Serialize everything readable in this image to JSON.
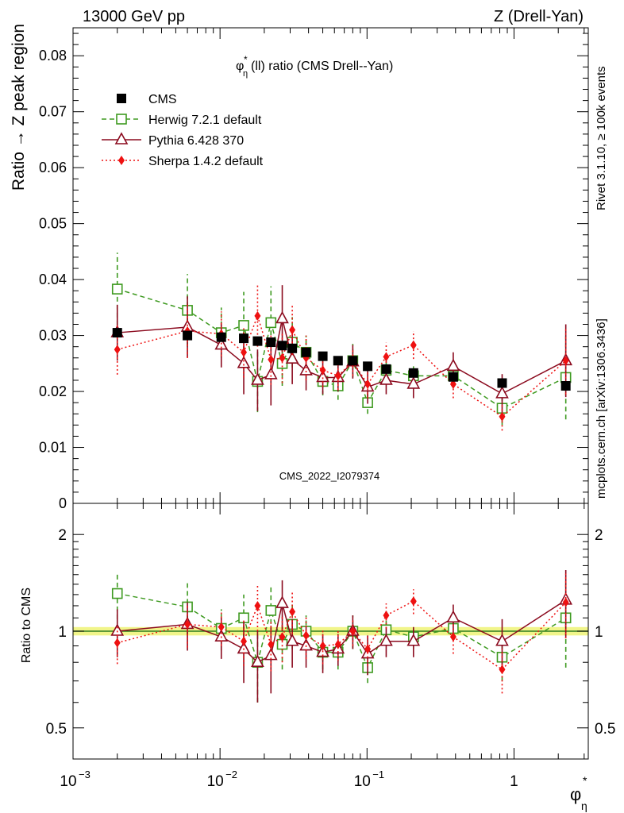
{
  "header": {
    "left": "13000 GeV pp",
    "right": "Z (Drell-Yan)"
  },
  "side_labels": {
    "rivet": "Rivet 3.1.10, ≥ 100k events",
    "source": "mcplots.cern.ch [arXiv:1306.3436]"
  },
  "watermark": "CMS_2022_I2079374",
  "chart_data": [
    {
      "type": "scatter",
      "panel": "main",
      "title": "φ*η(ll) ratio (CMS Drell--Yan)",
      "title_parts": {
        "sym": "φ",
        "sub": "η",
        "sup": "*",
        "rest": "(ll) ratio (CMS Drell--Yan)"
      },
      "ylabel": "Ratio → Z peak region",
      "xscale": "log",
      "xlim": [
        0.001,
        3.2
      ],
      "ylim": [
        0,
        0.085
      ],
      "yticks": [
        "0",
        "0.01",
        "0.02",
        "0.03",
        "0.04",
        "0.05",
        "0.06",
        "0.07",
        "0.08"
      ],
      "x": [
        0.002,
        0.006,
        0.0102,
        0.0145,
        0.018,
        0.0222,
        0.0265,
        0.031,
        0.0385,
        0.05,
        0.0635,
        0.08,
        0.101,
        0.135,
        0.207,
        0.386,
        0.83,
        2.25
      ],
      "series": [
        {
          "name": "CMS",
          "color": "#000000",
          "marker": "square-filled",
          "line": "none",
          "values": [
            0.0305,
            0.03,
            0.0297,
            0.0295,
            0.029,
            0.0288,
            0.0282,
            0.0277,
            0.027,
            0.0263,
            0.0255,
            0.0255,
            0.0245,
            0.024,
            0.0233,
            0.0226,
            0.0215,
            0.021
          ],
          "errors": [
            0.0,
            0.0,
            0.0,
            0.0,
            0.0,
            0.0,
            0.0,
            0.0,
            0.0,
            0.0,
            0.0,
            0.0,
            0.0,
            0.0,
            0.0,
            0.0,
            0.0,
            0.0
          ]
        },
        {
          "name": "Herwig 7.2.1 default",
          "color": "#3e9a20",
          "marker": "square-open",
          "line": "dashed",
          "values": [
            0.0383,
            0.0345,
            0.0305,
            0.0318,
            0.0218,
            0.0323,
            0.025,
            0.0288,
            0.027,
            0.0218,
            0.021,
            0.0255,
            0.018,
            0.0238,
            0.0228,
            0.0228,
            0.017,
            0.0225
          ],
          "errors": [
            0.0065,
            0.0065,
            0.0045,
            0.006,
            0.0055,
            0.0065,
            0.004,
            0.0045,
            0.003,
            0.0025,
            0.0025,
            0.003,
            0.002,
            0.002,
            0.002,
            0.002,
            0.003,
            0.0075
          ]
        },
        {
          "name": "Pythia 6.428 370",
          "color": "#8b0a1e",
          "marker": "triangle-open",
          "line": "solid",
          "values": [
            0.0305,
            0.0315,
            0.0283,
            0.025,
            0.022,
            0.023,
            0.033,
            0.0258,
            0.0237,
            0.0225,
            0.0225,
            0.0253,
            0.0208,
            0.022,
            0.0213,
            0.0245,
            0.0196,
            0.0255
          ],
          "errors": [
            0.005,
            0.0055,
            0.004,
            0.0055,
            0.0055,
            0.0055,
            0.006,
            0.0045,
            0.0035,
            0.003,
            0.0025,
            0.003,
            0.003,
            0.0025,
            0.0025,
            0.0025,
            0.0035,
            0.0065
          ]
        },
        {
          "name": "Sherpa 1.4.2 default",
          "color": "#ee1111",
          "marker": "diamond-filled",
          "line": "dotted",
          "values": [
            0.0275,
            0.0308,
            0.0303,
            0.027,
            0.0335,
            0.0257,
            0.026,
            0.031,
            0.026,
            0.0238,
            0.0228,
            0.0253,
            0.0213,
            0.0262,
            0.0283,
            0.0213,
            0.0155,
            0.0255
          ],
          "errors": [
            0.0045,
            0.0048,
            0.004,
            0.0045,
            0.0055,
            0.0045,
            0.0045,
            0.0045,
            0.004,
            0.003,
            0.0025,
            0.0025,
            0.0025,
            0.0025,
            0.0025,
            0.0025,
            0.0025,
            0.006
          ]
        }
      ]
    },
    {
      "type": "scatter",
      "panel": "ratio",
      "ylabel": "Ratio to CMS",
      "xlabel_parts": {
        "sym": "φ",
        "sub": "η",
        "sup": "*"
      },
      "xscale": "log",
      "yscale": "log",
      "xlim": [
        0.001,
        3.2
      ],
      "ylim": [
        0.4,
        2.5
      ],
      "yticks_left": [
        "0.5",
        "1",
        "2"
      ],
      "yticks_right": [
        "0.5",
        "1",
        "2"
      ],
      "xticks": [
        {
          "base": "10",
          "exp": "−3"
        },
        {
          "base": "10",
          "exp": "−2"
        },
        {
          "base": "10",
          "exp": "−1"
        },
        {
          "base": "1",
          "exp": ""
        }
      ],
      "band": {
        "color": "#f1f58a",
        "low": 0.97,
        "high": 1.03
      },
      "series": [
        {
          "name": "Herwig 7.2.1 default",
          "color": "#3e9a20",
          "marker": "square-open",
          "line": "dashed",
          "values": [
            1.31,
            1.19,
            1.02,
            1.1,
            0.8,
            1.16,
            0.91,
            1.05,
            1.0,
            0.86,
            0.86,
            1.0,
            0.77,
            1.01,
            0.96,
            1.02,
            0.83,
            1.1
          ],
          "errors": [
            0.22,
            0.22,
            0.15,
            0.2,
            0.2,
            0.22,
            0.15,
            0.17,
            0.12,
            0.1,
            0.1,
            0.12,
            0.08,
            0.08,
            0.08,
            0.08,
            0.13,
            0.33
          ]
        },
        {
          "name": "Pythia 6.428 370",
          "color": "#8b0a1e",
          "marker": "triangle-open",
          "line": "solid",
          "values": [
            1.0,
            1.05,
            0.96,
            0.88,
            0.8,
            0.84,
            1.22,
            0.93,
            0.9,
            0.86,
            0.88,
            1.0,
            0.85,
            0.93,
            0.93,
            1.1,
            0.93,
            1.25
          ],
          "errors": [
            0.17,
            0.18,
            0.14,
            0.19,
            0.2,
            0.2,
            0.22,
            0.16,
            0.13,
            0.12,
            0.1,
            0.12,
            0.12,
            0.1,
            0.1,
            0.11,
            0.16,
            0.3
          ]
        },
        {
          "name": "Sherpa 1.4.2 default",
          "color": "#ee1111",
          "marker": "diamond-filled",
          "line": "dotted",
          "values": [
            0.92,
            1.05,
            1.03,
            0.93,
            1.2,
            0.91,
            0.96,
            1.15,
            0.97,
            0.9,
            0.91,
            1.0,
            0.88,
            1.12,
            1.24,
            0.96,
            0.76,
            1.23
          ],
          "errors": [
            0.13,
            0.16,
            0.13,
            0.15,
            0.2,
            0.16,
            0.16,
            0.17,
            0.15,
            0.11,
            0.1,
            0.1,
            0.1,
            0.1,
            0.11,
            0.11,
            0.12,
            0.28
          ]
        }
      ]
    }
  ]
}
